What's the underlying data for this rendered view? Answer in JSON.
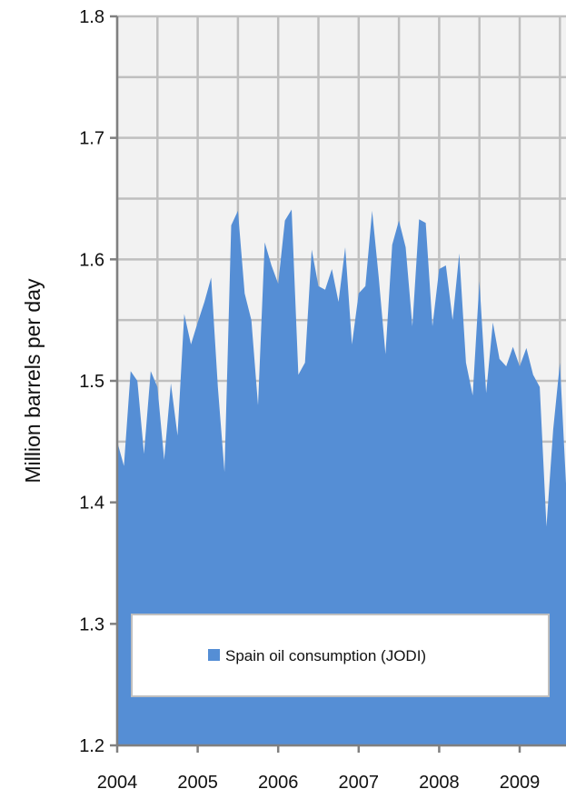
{
  "chart_data": {
    "type": "area",
    "ylabel": "Million barrels per day",
    "xlabel": "",
    "ylim": [
      1.2,
      1.8
    ],
    "y_ticks": [
      "1.2",
      "1.3",
      "1.4",
      "1.5",
      "1.6",
      "1.7",
      "1.8"
    ],
    "x_ticks": [
      "2004",
      "2005",
      "2006",
      "2007",
      "2008",
      "2009"
    ],
    "grid": true,
    "legend_position": "bottom-center",
    "series": [
      {
        "name": "Spain oil consumption (JODI)",
        "color": "#558ed5",
        "x_start": "2004-01",
        "frequency": "monthly",
        "values": [
          1.45,
          1.43,
          1.508,
          1.5,
          1.44,
          1.508,
          1.495,
          1.435,
          1.498,
          1.455,
          1.555,
          1.53,
          1.548,
          1.565,
          1.585,
          1.495,
          1.425,
          1.628,
          1.64,
          1.572,
          1.55,
          1.48,
          1.614,
          1.595,
          1.58,
          1.632,
          1.641,
          1.505,
          1.515,
          1.608,
          1.578,
          1.575,
          1.592,
          1.565,
          1.61,
          1.53,
          1.572,
          1.578,
          1.64,
          1.585,
          1.522,
          1.612,
          1.632,
          1.61,
          1.545,
          1.633,
          1.63,
          1.545,
          1.592,
          1.595,
          1.55,
          1.605,
          1.515,
          1.488,
          1.582,
          1.49,
          1.548,
          1.518,
          1.512,
          1.528,
          1.512,
          1.527,
          1.505,
          1.495,
          1.38,
          1.46,
          1.515,
          1.405
        ]
      }
    ]
  }
}
